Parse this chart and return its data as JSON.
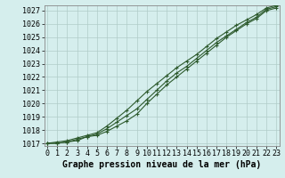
{
  "xlabel": "Graphe pression niveau de la mer (hPa)",
  "ylim": [
    1016.8,
    1027.4
  ],
  "xlim": [
    -0.3,
    23.3
  ],
  "yticks": [
    1017,
    1018,
    1019,
    1020,
    1021,
    1022,
    1023,
    1024,
    1025,
    1026,
    1027
  ],
  "xticks": [
    0,
    1,
    2,
    3,
    4,
    5,
    6,
    7,
    8,
    9,
    10,
    11,
    12,
    13,
    14,
    15,
    16,
    17,
    18,
    19,
    20,
    21,
    22,
    23
  ],
  "bg_color": "#d5eeed",
  "grid_color": "#b0ccc8",
  "line_color": "#2d5a2d",
  "line1": [
    1017.0,
    1017.0,
    1017.1,
    1017.2,
    1017.5,
    1017.6,
    1017.9,
    1018.3,
    1018.7,
    1019.2,
    1020.0,
    1020.7,
    1021.4,
    1022.0,
    1022.6,
    1023.2,
    1023.8,
    1024.4,
    1025.0,
    1025.5,
    1026.0,
    1026.4,
    1027.0,
    1027.2
  ],
  "line2": [
    1017.0,
    1017.0,
    1017.1,
    1017.3,
    1017.5,
    1017.7,
    1018.1,
    1018.6,
    1019.1,
    1019.6,
    1020.3,
    1021.0,
    1021.7,
    1022.3,
    1022.8,
    1023.4,
    1024.0,
    1024.6,
    1025.1,
    1025.6,
    1026.1,
    1026.5,
    1027.1,
    1027.3
  ],
  "line3": [
    1017.0,
    1017.1,
    1017.2,
    1017.4,
    1017.6,
    1017.8,
    1018.3,
    1018.9,
    1019.5,
    1020.2,
    1020.9,
    1021.5,
    1022.1,
    1022.7,
    1023.2,
    1023.7,
    1024.3,
    1024.9,
    1025.4,
    1025.9,
    1026.3,
    1026.7,
    1027.2,
    1027.4
  ],
  "markersize": 3,
  "linewidth": 0.8,
  "xlabel_fontsize": 7,
  "tick_fontsize": 6
}
